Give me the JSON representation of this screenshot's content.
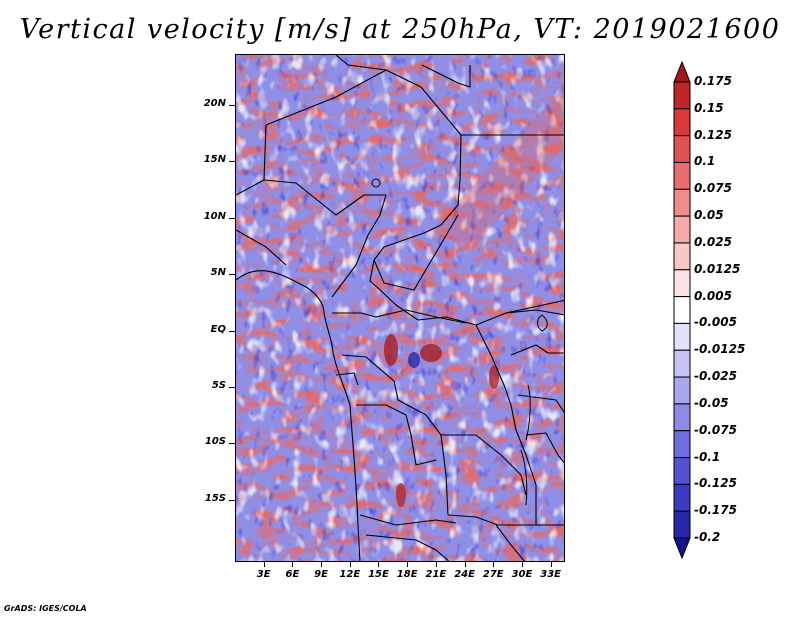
{
  "title": "Vertical velocity [m/s] at 250hPa, VT: 2019021600",
  "credit": "GrADS: IGES/COLA",
  "map": {
    "lat_range": [
      -20.5,
      24.5
    ],
    "lon_range": [
      0,
      34.5
    ],
    "lat_ticks": [
      {
        "value": 20,
        "label": "20N"
      },
      {
        "value": 15,
        "label": "15N"
      },
      {
        "value": 10,
        "label": "10N"
      },
      {
        "value": 5,
        "label": "5N"
      },
      {
        "value": 0,
        "label": "EQ"
      },
      {
        "value": -5,
        "label": "5S"
      },
      {
        "value": -10,
        "label": "10S"
      },
      {
        "value": -15,
        "label": "15S"
      }
    ],
    "lon_ticks": [
      {
        "value": 3,
        "label": "3E"
      },
      {
        "value": 6,
        "label": "6E"
      },
      {
        "value": 9,
        "label": "9E"
      },
      {
        "value": 12,
        "label": "12E"
      },
      {
        "value": 15,
        "label": "15E"
      },
      {
        "value": 18,
        "label": "18E"
      },
      {
        "value": 21,
        "label": "21E"
      },
      {
        "value": 24,
        "label": "24E"
      },
      {
        "value": 27,
        "label": "27E"
      },
      {
        "value": 30,
        "label": "30E"
      },
      {
        "value": 33,
        "label": "33E"
      }
    ]
  },
  "colorbar": {
    "labels": [
      "0.175",
      "0.15",
      "0.125",
      "0.1",
      "0.075",
      "0.05",
      "0.025",
      "0.0125",
      "0.005",
      "-0.005",
      "-0.0125",
      "-0.025",
      "-0.05",
      "-0.075",
      "-0.1",
      "-0.125",
      "-0.175",
      "-0.2"
    ],
    "colors": [
      "#a01818",
      "#c02626",
      "#d63a3a",
      "#e05252",
      "#e86e6e",
      "#ef8c8c",
      "#f4aaaa",
      "#f8c8c8",
      "#fbe2e2",
      "#ffffff",
      "#e2e2fb",
      "#c4c4f4",
      "#a8a8ee",
      "#8c8ce6",
      "#6e6ede",
      "#5252d2",
      "#3a3ac4",
      "#2626a8",
      "#141490"
    ]
  }
}
